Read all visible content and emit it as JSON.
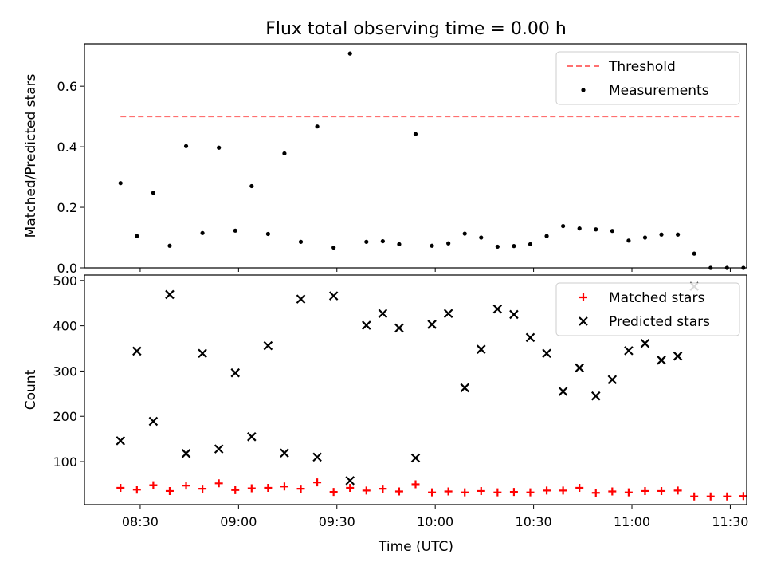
{
  "chart_data": [
    {
      "type": "scatter",
      "title": "Flux total observing time = 0.00 h",
      "xlabel": "",
      "ylabel": "Matched/Predicted stars",
      "xlim": [
        "08:13",
        "11:35"
      ],
      "ylim": [
        0,
        0.74
      ],
      "y_ticks": [
        0.0,
        0.2,
        0.4,
        0.6
      ],
      "y_tick_labels": [
        "0.0",
        "0.2",
        "0.4",
        "0.6"
      ],
      "legend_position": "top-right",
      "series": [
        {
          "name": "Threshold",
          "style": "dashed-line",
          "color": "#ff7070",
          "x": [
            "08:24",
            "11:34"
          ],
          "y": [
            0.5,
            0.5
          ]
        },
        {
          "name": "Measurements",
          "style": "dot",
          "color": "#000000",
          "x": [
            "08:24",
            "08:29",
            "08:34",
            "08:39",
            "08:44",
            "08:49",
            "08:54",
            "08:59",
            "09:04",
            "09:09",
            "09:14",
            "09:19",
            "09:24",
            "09:29",
            "09:34",
            "09:39",
            "09:44",
            "09:49",
            "09:54",
            "09:59",
            "10:04",
            "10:09",
            "10:14",
            "10:19",
            "10:24",
            "10:29",
            "10:34",
            "10:39",
            "10:44",
            "10:49",
            "10:54",
            "10:59",
            "11:04",
            "11:09",
            "11:14",
            "11:19",
            "11:24",
            "11:29",
            "11:34"
          ],
          "y": [
            0.28,
            0.105,
            0.248,
            0.073,
            0.402,
            0.115,
            0.397,
            0.123,
            0.27,
            0.112,
            0.378,
            0.086,
            0.467,
            0.067,
            0.708,
            0.086,
            0.088,
            0.078,
            0.442,
            0.073,
            0.081,
            0.113,
            0.1,
            0.07,
            0.072,
            0.078,
            0.105,
            0.138,
            0.13,
            0.127,
            0.122,
            0.09,
            0.1,
            0.11,
            0.11,
            0.047,
            0.0,
            0.0,
            0.0
          ]
        }
      ]
    },
    {
      "type": "scatter",
      "title": "",
      "xlabel": "Time (UTC)",
      "ylabel": "Count",
      "xlim": [
        "08:13",
        "11:35"
      ],
      "ylim": [
        5,
        512
      ],
      "y_ticks": [
        100,
        200,
        300,
        400,
        500
      ],
      "y_tick_labels": [
        "100",
        "200",
        "300",
        "400",
        "500"
      ],
      "x_ticks": [
        "08:30",
        "09:00",
        "09:30",
        "10:00",
        "10:30",
        "11:00",
        "11:30"
      ],
      "x_tick_labels": [
        "08:30",
        "09:00",
        "09:30",
        "10:00",
        "10:30",
        "11:00",
        "11:30"
      ],
      "legend_position": "top-right",
      "series": [
        {
          "name": "Matched stars",
          "style": "plus",
          "color": "#ff0000",
          "x": [
            "08:24",
            "08:29",
            "08:34",
            "08:39",
            "08:44",
            "08:49",
            "08:54",
            "08:59",
            "09:04",
            "09:09",
            "09:14",
            "09:19",
            "09:24",
            "09:29",
            "09:34",
            "09:39",
            "09:44",
            "09:49",
            "09:54",
            "09:59",
            "10:04",
            "10:09",
            "10:14",
            "10:19",
            "10:24",
            "10:29",
            "10:34",
            "10:39",
            "10:44",
            "10:49",
            "10:54",
            "10:59",
            "11:04",
            "11:09",
            "11:14",
            "11:19",
            "11:24",
            "11:29",
            "11:34"
          ],
          "y": [
            42,
            38,
            48,
            35,
            47,
            40,
            52,
            37,
            41,
            42,
            45,
            40,
            54,
            33,
            42,
            36,
            40,
            34,
            50,
            32,
            34,
            32,
            35,
            32,
            33,
            32,
            36,
            36,
            42,
            31,
            34,
            32,
            35,
            35,
            36,
            23,
            23,
            23,
            24
          ]
        },
        {
          "name": "Predicted stars",
          "style": "x",
          "color": "#000000",
          "x": [
            "08:24",
            "08:29",
            "08:34",
            "08:39",
            "08:44",
            "08:49",
            "08:54",
            "08:59",
            "09:04",
            "09:09",
            "09:14",
            "09:19",
            "09:24",
            "09:29",
            "09:34",
            "09:39",
            "09:44",
            "09:49",
            "09:54",
            "09:59",
            "10:04",
            "10:09",
            "10:14",
            "10:19",
            "10:24",
            "10:29",
            "10:34",
            "10:39",
            "10:44",
            "10:49",
            "10:54",
            "10:59",
            "11:04",
            "11:09",
            "11:14",
            "11:19"
          ],
          "y": [
            146,
            344,
            189,
            469,
            118,
            339,
            128,
            296,
            155,
            356,
            119,
            459,
            110,
            466,
            58,
            401,
            427,
            395,
            108,
            403,
            427,
            263,
            348,
            437,
            425,
            374,
            339,
            255,
            307,
            245,
            281,
            345,
            361,
            324,
            333,
            487
          ]
        }
      ]
    }
  ]
}
